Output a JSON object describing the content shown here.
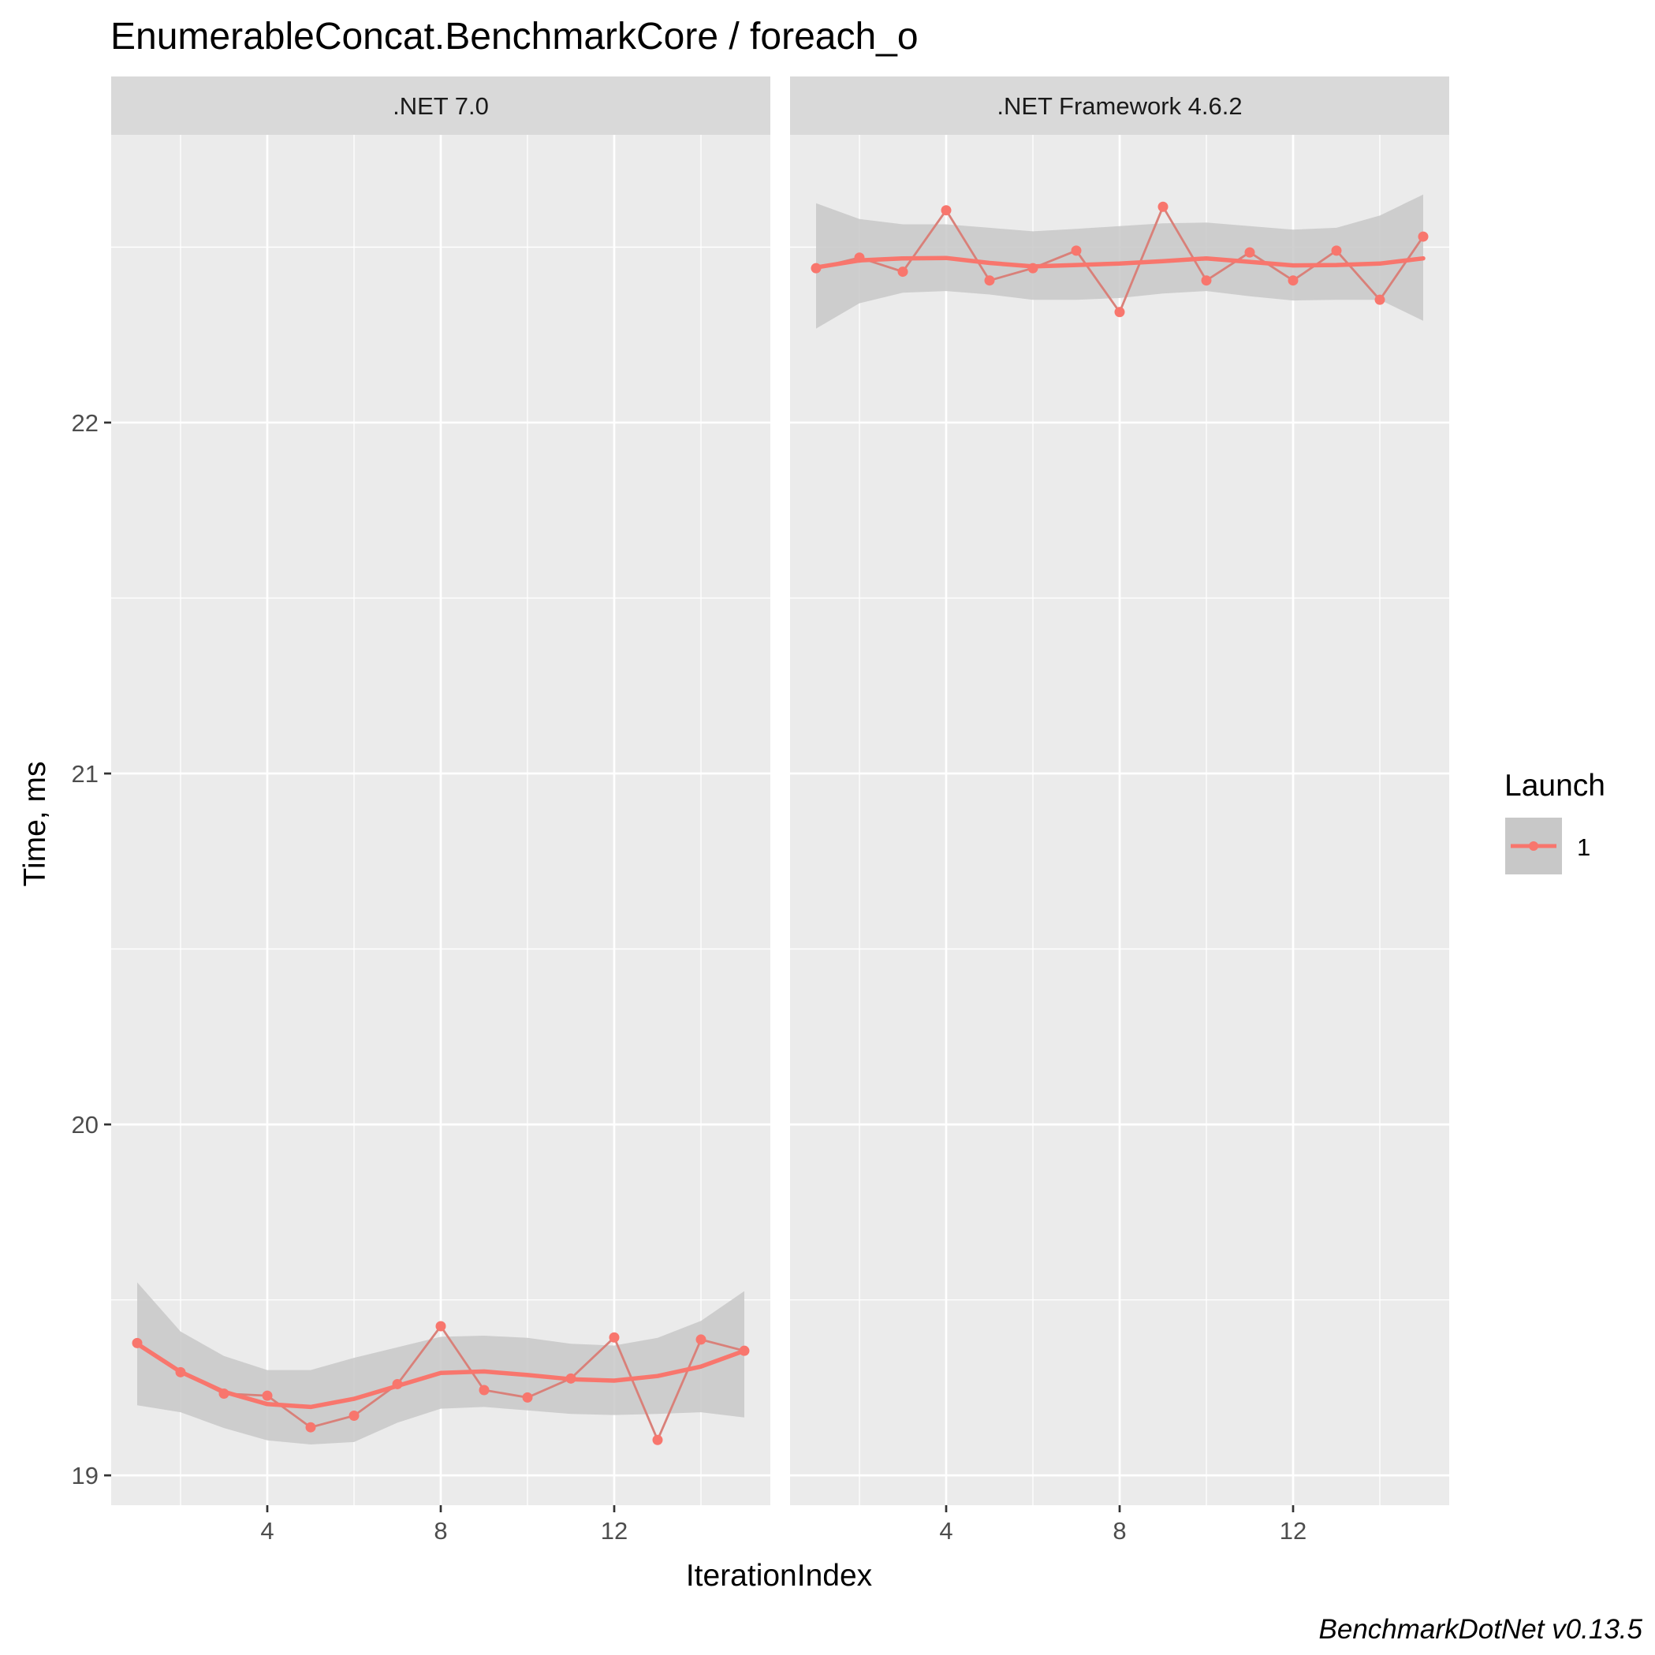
{
  "chart_data": {
    "type": "line",
    "title": "EnumerableConcat.BenchmarkCore / foreach_o",
    "xlabel": "IterationIndex",
    "ylabel": "Time, ms",
    "caption": "BenchmarkDotNet v0.13.5",
    "xlim": [
      0.4,
      15.6
    ],
    "ylim": [
      18.915,
      22.82
    ],
    "x_ticks": [
      4,
      8,
      12
    ],
    "y_ticks": [
      19,
      20,
      21,
      22
    ],
    "legend": {
      "title": "Launch",
      "entries": [
        "1"
      ],
      "position": "right"
    },
    "colors": {
      "series": "#f8766d",
      "point": "#d98079",
      "ribbon": "#c8c8c8"
    },
    "panels": [
      {
        "label": ".NET 7.0",
        "series": [
          {
            "name": "1",
            "x": [
              1,
              2,
              3,
              4,
              5,
              6,
              7,
              8,
              9,
              10,
              11,
              12,
              13,
              14,
              15
            ],
            "values": [
              19.377,
              19.294,
              19.233,
              19.227,
              19.137,
              19.17,
              19.26,
              19.425,
              19.243,
              19.222,
              19.276,
              19.393,
              19.101,
              19.387,
              19.355
            ]
          }
        ],
        "smooth": {
          "x": [
            1,
            2,
            3,
            4,
            5,
            6,
            7,
            8,
            9,
            10,
            11,
            12,
            13,
            14,
            15
          ],
          "fit": [
            19.375,
            19.295,
            19.238,
            19.203,
            19.195,
            19.218,
            19.255,
            19.292,
            19.296,
            19.286,
            19.274,
            19.27,
            19.283,
            19.31,
            19.355
          ],
          "lower": [
            19.2,
            19.18,
            19.135,
            19.1,
            19.088,
            19.095,
            19.15,
            19.19,
            19.195,
            19.185,
            19.175,
            19.172,
            19.175,
            19.18,
            19.165
          ],
          "upper": [
            19.55,
            19.41,
            19.34,
            19.3,
            19.3,
            19.335,
            19.365,
            19.395,
            19.398,
            19.392,
            19.375,
            19.37,
            19.392,
            19.44,
            19.525
          ]
        }
      },
      {
        "label": ".NET Framework 4.6.2",
        "series": [
          {
            "name": "1",
            "x": [
              1,
              2,
              3,
              4,
              5,
              6,
              7,
              8,
              9,
              10,
              11,
              12,
              13,
              14,
              15
            ],
            "values": [
              22.44,
              22.47,
              22.43,
              22.605,
              22.405,
              22.44,
              22.49,
              22.315,
              22.615,
              22.405,
              22.485,
              22.405,
              22.49,
              22.35,
              22.53
            ]
          }
        ],
        "smooth": {
          "x": [
            1,
            2,
            3,
            4,
            5,
            6,
            7,
            8,
            9,
            10,
            11,
            12,
            13,
            14,
            15
          ],
          "fit": [
            22.442,
            22.462,
            22.468,
            22.469,
            22.455,
            22.445,
            22.449,
            22.453,
            22.46,
            22.468,
            22.458,
            22.448,
            22.449,
            22.453,
            22.468
          ],
          "lower": [
            22.268,
            22.34,
            22.37,
            22.375,
            22.365,
            22.35,
            22.35,
            22.355,
            22.368,
            22.375,
            22.36,
            22.348,
            22.35,
            22.35,
            22.29
          ],
          "upper": [
            22.625,
            22.58,
            22.565,
            22.565,
            22.555,
            22.545,
            22.552,
            22.56,
            22.568,
            22.57,
            22.56,
            22.55,
            22.555,
            22.59,
            22.65
          ]
        }
      }
    ]
  }
}
